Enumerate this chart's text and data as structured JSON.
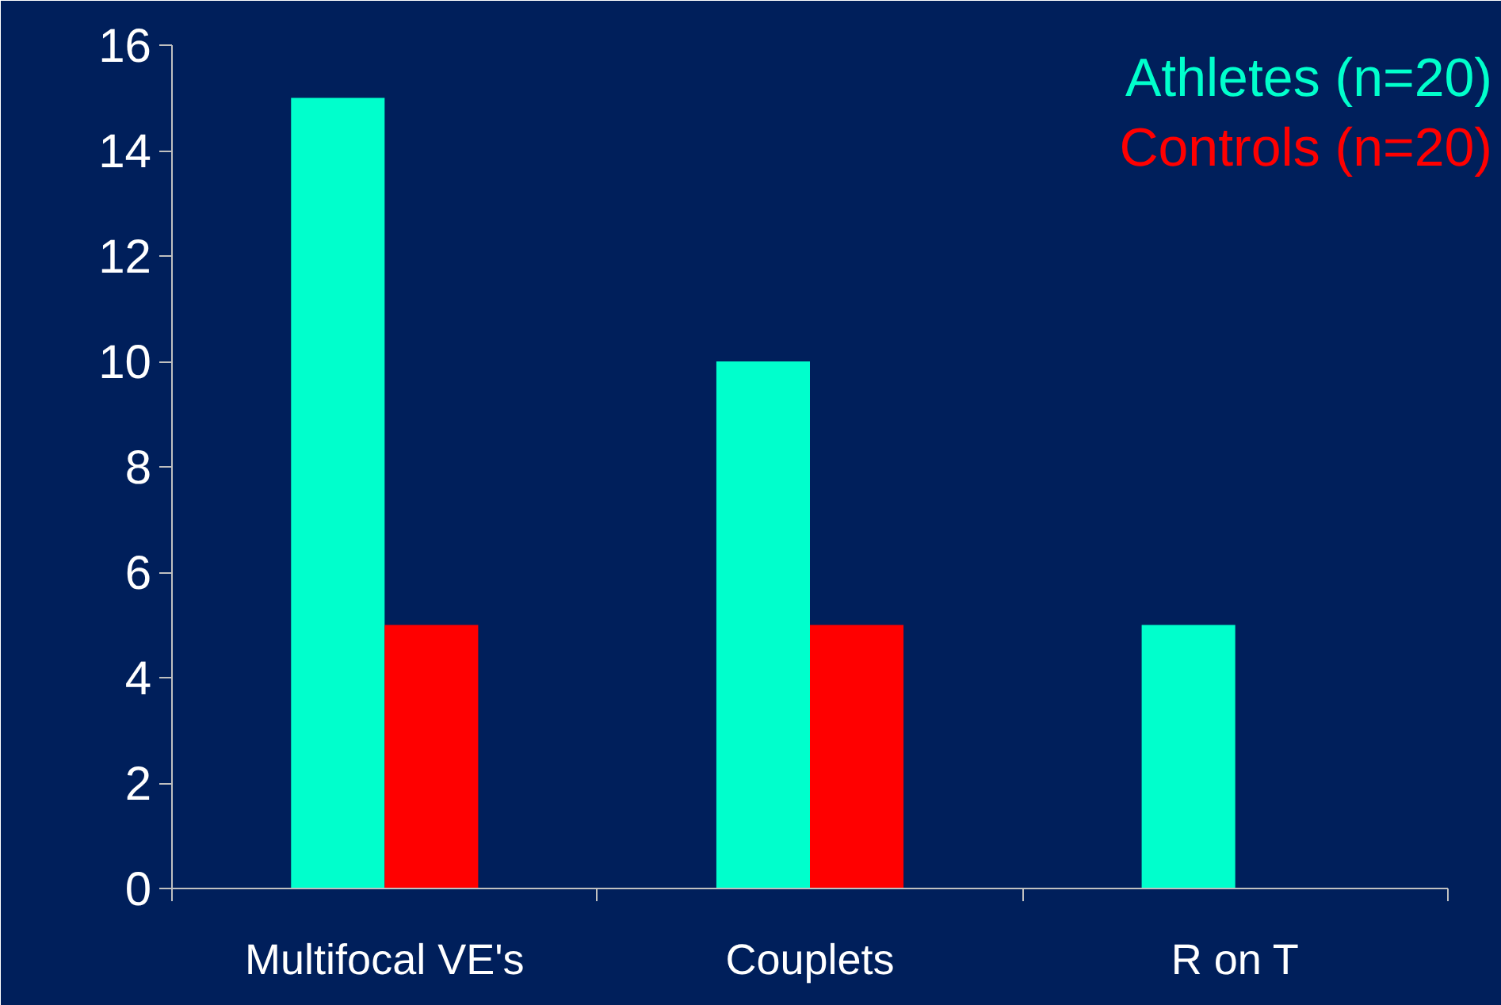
{
  "chart_data": {
    "type": "bar",
    "categories": [
      "Multifocal VE's",
      "Couplets",
      "R on T"
    ],
    "series": [
      {
        "name": "Athletes (n=20)",
        "color": "#00ffcc",
        "values": [
          15,
          10,
          5
        ]
      },
      {
        "name": "Controls (n=20)",
        "color": "#ff0000",
        "values": [
          5,
          5,
          0
        ]
      }
    ],
    "ylim": [
      0,
      16
    ],
    "yticks": [
      0,
      2,
      4,
      6,
      8,
      10,
      12,
      14,
      16
    ],
    "grid": false,
    "legend": "top right"
  }
}
